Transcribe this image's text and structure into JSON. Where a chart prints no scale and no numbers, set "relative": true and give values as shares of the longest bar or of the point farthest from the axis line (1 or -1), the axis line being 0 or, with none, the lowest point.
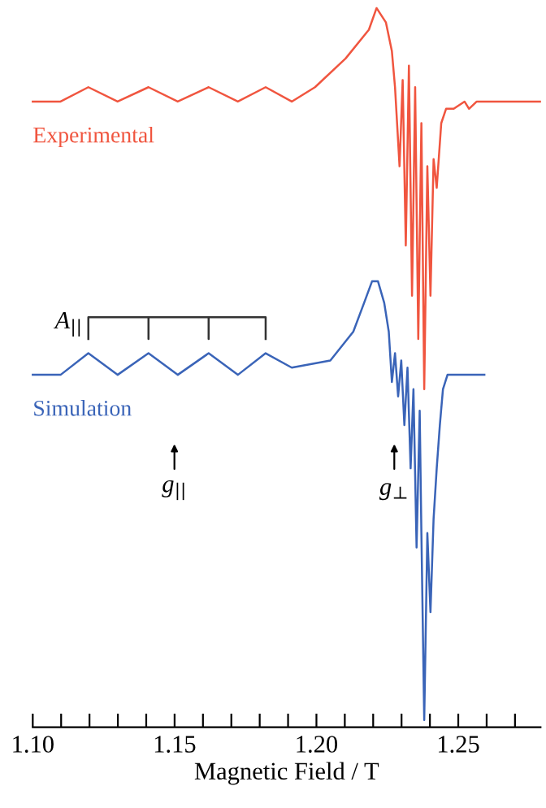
{
  "chart_data": {
    "type": "line",
    "relative": true,
    "xlabel": "Magnetic Field / T",
    "xlim": [
      1.1,
      1.279
    ],
    "xticks": [
      {
        "value": 1.1,
        "label": "1.10"
      },
      {
        "value": 1.11,
        "label": null
      },
      {
        "value": 1.12,
        "label": null
      },
      {
        "value": 1.13,
        "label": null
      },
      {
        "value": 1.14,
        "label": null
      },
      {
        "value": 1.15,
        "label": "1.15"
      },
      {
        "value": 1.16,
        "label": null
      },
      {
        "value": 1.17,
        "label": null
      },
      {
        "value": 1.18,
        "label": null
      },
      {
        "value": 1.19,
        "label": null
      },
      {
        "value": 1.2,
        "label": "1.20"
      },
      {
        "value": 1.21,
        "label": null
      },
      {
        "value": 1.22,
        "label": null
      },
      {
        "value": 1.23,
        "label": null
      },
      {
        "value": 1.24,
        "label": null
      },
      {
        "value": 1.25,
        "label": "1.25"
      },
      {
        "value": 1.26,
        "label": null
      },
      {
        "value": 1.27,
        "label": null
      }
    ],
    "tick_labels": "x",
    "grid": false,
    "legend": false,
    "marker": "none",
    "line_style": "solid",
    "series": [
      {
        "name": "Experimental",
        "color": "#f0553f",
        "x": [
          1.1,
          1.1098,
          1.1196,
          1.1299,
          1.1408,
          1.1511,
          1.162,
          1.1723,
          1.1821,
          1.1913,
          1.1995,
          1.2103,
          1.2185,
          1.2212,
          1.2245,
          1.2266,
          1.2277,
          1.2293,
          1.2304,
          1.2315,
          1.2326,
          1.2337,
          1.2348,
          1.2359,
          1.237,
          1.238,
          1.2391,
          1.2402,
          1.2413,
          1.2424,
          1.244,
          1.2457,
          1.2484,
          1.2522,
          1.2538,
          1.2565,
          1.2788
        ],
        "values": [
          0.87,
          0.87,
          0.89,
          0.87,
          0.89,
          0.87,
          0.89,
          0.87,
          0.89,
          0.87,
          0.89,
          0.93,
          0.97,
          1.0,
          0.98,
          0.94,
          0.89,
          0.78,
          0.9,
          0.67,
          0.92,
          0.6,
          0.89,
          0.54,
          0.84,
          0.47,
          0.78,
          0.6,
          0.79,
          0.75,
          0.84,
          0.86,
          0.86,
          0.87,
          0.86,
          0.87,
          0.87
        ]
      },
      {
        "name": "Simulation",
        "color": "#3a64b8",
        "x": [
          1.1,
          1.1098,
          1.1196,
          1.1299,
          1.1408,
          1.1511,
          1.162,
          1.1723,
          1.1821,
          1.1913,
          1.2049,
          1.213,
          1.2168,
          1.2196,
          1.2217,
          1.2239,
          1.2255,
          1.2266,
          1.2277,
          1.2288,
          1.2299,
          1.231,
          1.2321,
          1.2332,
          1.2342,
          1.2353,
          1.2364,
          1.237,
          1.238,
          1.2391,
          1.2402,
          1.2413,
          1.2424,
          1.2435,
          1.2446,
          1.2462,
          1.2592
        ],
        "values": [
          0.49,
          0.49,
          0.52,
          0.49,
          0.52,
          0.49,
          0.52,
          0.49,
          0.52,
          0.5,
          0.51,
          0.55,
          0.59,
          0.62,
          0.62,
          0.59,
          0.55,
          0.48,
          0.52,
          0.46,
          0.51,
          0.42,
          0.5,
          0.36,
          0.47,
          0.25,
          0.44,
          0.27,
          0.01,
          0.27,
          0.16,
          0.29,
          0.36,
          0.42,
          0.47,
          0.49,
          0.49
        ]
      },
      {
        "color": "#333333",
        "x": [
          1.1196,
          1.1196,
          1.1408,
          1.1408,
          1.1408,
          1.162,
          1.162,
          1.162,
          1.1821,
          1.1821
        ],
        "values": [
          0.54,
          0.57,
          0.57,
          0.54,
          0.57,
          0.57,
          0.54,
          0.57,
          0.57,
          0.54
        ]
      }
    ],
    "annotations": [
      {
        "text": "A$_{||}$",
        "x": 1.1196,
        "y": 0.56
      },
      "g$_{||}$",
      "g$_{⊥}$"
    ]
  }
}
